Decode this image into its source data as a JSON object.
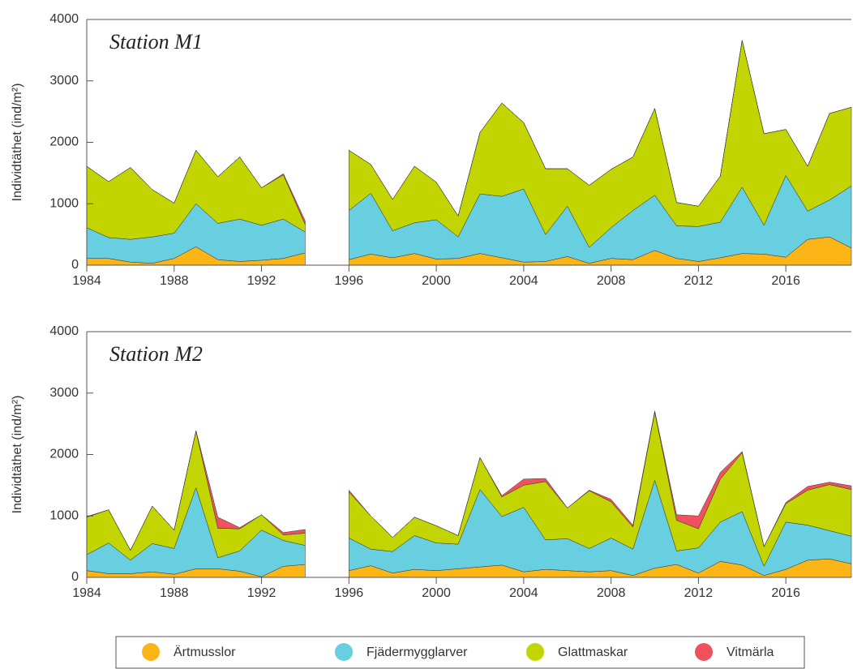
{
  "chart_data": [
    {
      "type": "area",
      "stacked": true,
      "title": "Station M1",
      "y_label": "Individtäthet (ind/m²)",
      "x": [
        1984,
        1985,
        1986,
        1987,
        1988,
        1989,
        1990,
        1991,
        1992,
        1993,
        1994,
        1995,
        1996,
        1997,
        1998,
        1999,
        2000,
        2001,
        2002,
        2003,
        2004,
        2005,
        2006,
        2007,
        2008,
        2009,
        2010,
        2011,
        2012,
        2013,
        2014,
        2015,
        2016,
        2017,
        2018,
        2019
      ],
      "xlim": [
        1984,
        2019
      ],
      "xticks": [
        1984,
        1988,
        1992,
        1996,
        2000,
        2004,
        2008,
        2012,
        2016
      ],
      "ylim": [
        0,
        4000
      ],
      "yticks": [
        0,
        1000,
        2000,
        3000,
        4000
      ],
      "series": [
        {
          "name": "Ärtmusslor",
          "color": "#fbb516",
          "values": [
            110,
            110,
            50,
            30,
            110,
            300,
            90,
            60,
            80,
            110,
            200,
            null,
            90,
            180,
            120,
            190,
            100,
            110,
            190,
            120,
            50,
            60,
            140,
            30,
            110,
            90,
            240,
            110,
            60,
            120,
            190,
            180,
            130,
            420,
            460,
            280
          ]
        },
        {
          "name": "Fjädermygglarver",
          "color": "#67cfe0",
          "values": [
            500,
            340,
            370,
            430,
            410,
            700,
            590,
            690,
            570,
            640,
            340,
            null,
            800,
            990,
            440,
            500,
            640,
            350,
            970,
            1000,
            1190,
            440,
            820,
            260,
            500,
            800,
            900,
            530,
            570,
            580,
            1080,
            470,
            1330,
            460,
            600,
            1010
          ]
        },
        {
          "name": "Glattmaskar",
          "color": "#c3d500",
          "values": [
            1000,
            910,
            1170,
            770,
            490,
            870,
            760,
            1010,
            610,
            720,
            120,
            null,
            980,
            470,
            510,
            920,
            610,
            340,
            1000,
            1520,
            1080,
            1070,
            610,
            1010,
            950,
            870,
            1410,
            380,
            330,
            750,
            2390,
            1490,
            750,
            730,
            1410,
            1280
          ]
        },
        {
          "name": "Vitmärla",
          "color": "#f0515e",
          "values": [
            0,
            0,
            0,
            0,
            0,
            0,
            0,
            0,
            0,
            20,
            60,
            null,
            0,
            0,
            0,
            0,
            0,
            0,
            0,
            0,
            0,
            0,
            0,
            0,
            0,
            0,
            0,
            0,
            0,
            0,
            0,
            0,
            0,
            0,
            0,
            0
          ]
        }
      ]
    },
    {
      "type": "area",
      "stacked": true,
      "title": "Station M2",
      "y_label": "Individtäthet (ind/m²)",
      "x": [
        1984,
        1985,
        1986,
        1987,
        1988,
        1989,
        1990,
        1991,
        1992,
        1993,
        1994,
        1995,
        1996,
        1997,
        1998,
        1999,
        2000,
        2001,
        2002,
        2003,
        2004,
        2005,
        2006,
        2007,
        2008,
        2009,
        2010,
        2011,
        2012,
        2013,
        2014,
        2015,
        2016,
        2017,
        2018,
        2019
      ],
      "xlim": [
        1984,
        2019
      ],
      "xticks": [
        1984,
        1988,
        1992,
        1996,
        2000,
        2004,
        2008,
        2012,
        2016
      ],
      "ylim": [
        0,
        4000
      ],
      "yticks": [
        0,
        1000,
        2000,
        3000,
        4000
      ],
      "series": [
        {
          "color": "#fbb516",
          "values": [
            110,
            60,
            60,
            90,
            50,
            140,
            140,
            100,
            10,
            180,
            210,
            null,
            110,
            190,
            70,
            130,
            110,
            140,
            170,
            200,
            90,
            130,
            110,
            90,
            110,
            30,
            150,
            210,
            70,
            260,
            200,
            30,
            130,
            280,
            300,
            220
          ]
        },
        {
          "color": "#67cfe0",
          "values": [
            260,
            500,
            220,
            460,
            420,
            1320,
            180,
            330,
            760,
            420,
            310,
            null,
            530,
            270,
            350,
            550,
            450,
            400,
            1260,
            790,
            1050,
            480,
            520,
            380,
            530,
            430,
            1430,
            220,
            410,
            640,
            870,
            150,
            770,
            570,
            460,
            450
          ]
        },
        {
          "color": "#c3d500",
          "values": [
            610,
            540,
            160,
            610,
            300,
            920,
            480,
            360,
            250,
            90,
            200,
            null,
            750,
            540,
            230,
            300,
            280,
            140,
            520,
            320,
            360,
            950,
            500,
            940,
            590,
            360,
            1110,
            500,
            310,
            700,
            960,
            320,
            300,
            570,
            750,
            760
          ]
        },
        {
          "color": "#f0515e",
          "values": [
            10,
            0,
            0,
            0,
            0,
            10,
            180,
            20,
            0,
            40,
            60,
            null,
            30,
            0,
            0,
            0,
            0,
            0,
            0,
            20,
            100,
            50,
            0,
            10,
            40,
            30,
            20,
            90,
            210,
            110,
            20,
            0,
            20,
            60,
            40,
            60
          ]
        }
      ]
    }
  ]
}
